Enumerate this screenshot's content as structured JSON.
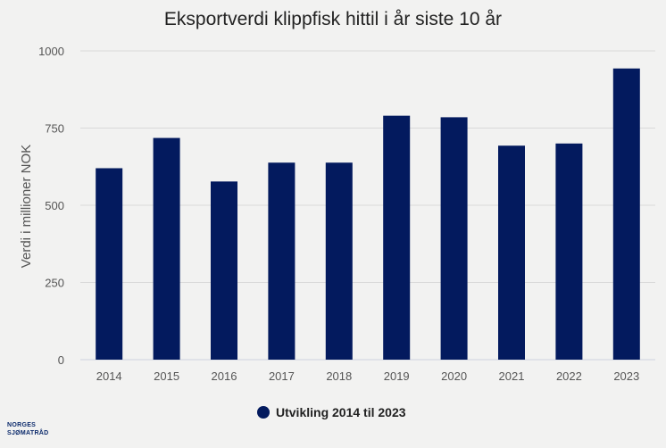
{
  "chart_data": {
    "type": "bar",
    "title": "Eksportverdi klippfisk hittil i år siste 10 år",
    "xlabel": "",
    "ylabel": "Verdi i millioner NOK",
    "categories": [
      "2014",
      "2015",
      "2016",
      "2017",
      "2018",
      "2019",
      "2020",
      "2021",
      "2022",
      "2023"
    ],
    "series": [
      {
        "name": "Utvikling 2014 til 2023",
        "values": [
          620,
          718,
          577,
          638,
          638,
          790,
          785,
          693,
          700,
          943
        ]
      }
    ],
    "ylim": [
      0,
      1000
    ],
    "yticks": [
      0,
      250,
      500,
      750,
      1000
    ],
    "grid": true,
    "legend": "bottom-center",
    "colors": {
      "bar": "#031a5e",
      "grid": "#d9d9d9",
      "axis": "#cdd3e0",
      "text": "#555555",
      "title": "#222222"
    }
  },
  "logo": {
    "line1": "NORGES",
    "line2": "SJØMATRÅD"
  }
}
